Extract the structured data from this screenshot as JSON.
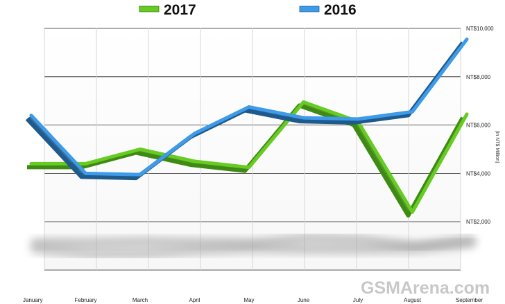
{
  "chart_data": {
    "type": "line",
    "title": "",
    "ylabel": "(in NT$ Million)",
    "ylim": [
      0,
      10000
    ],
    "yticks": [
      2000,
      4000,
      6000,
      8000,
      10000
    ],
    "ytick_labels": [
      "NT$2,000",
      "NT$4,000",
      "NT$6,000",
      "NT$8,000",
      "NT$10,000"
    ],
    "categories": [
      "January",
      "February",
      "March",
      "April",
      "May",
      "June",
      "July",
      "August",
      "September"
    ],
    "series": [
      {
        "name": "2017",
        "color": "#66cc22",
        "values": [
          4400,
          4400,
          5000,
          4500,
          4250,
          6950,
          6150,
          2400,
          6450
        ]
      },
      {
        "name": "2016",
        "color": "#3d9be9",
        "values": [
          6400,
          4000,
          3950,
          5650,
          6750,
          6300,
          6250,
          6550,
          9550
        ]
      }
    ],
    "legend": "top",
    "grid": true
  },
  "watermark": {
    "text": "GSMArena.com"
  }
}
